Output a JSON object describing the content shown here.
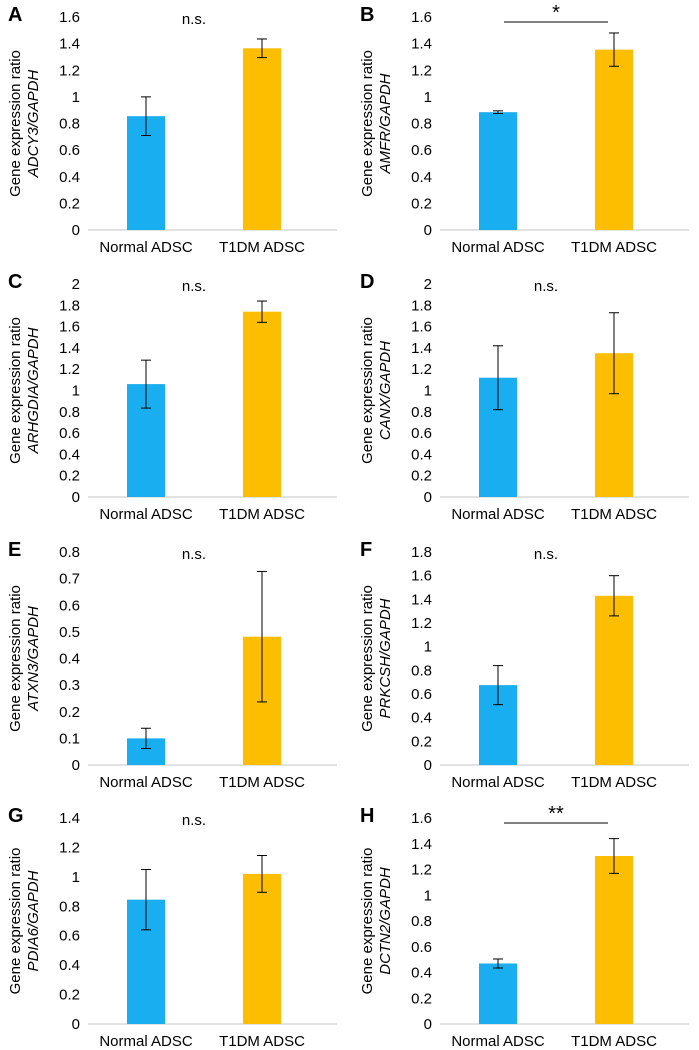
{
  "figure": {
    "colors": {
      "normal": "#19aef0",
      "t1dm": "#fdbe00",
      "axis": "#d9d9d9",
      "errorbar": "#000000"
    },
    "categories": [
      "Normal ADSC",
      "T1DM ADSC"
    ],
    "ylabel_prefix": "Gene expression ratio"
  },
  "chart_data": [
    {
      "panel": "A",
      "type": "bar",
      "gene_label": "ADCY3/GAPDH",
      "categories": [
        "Normal ADSC",
        "T1DM ADSC"
      ],
      "values": [
        0.855,
        1.365
      ],
      "errors": [
        0.145,
        0.07
      ],
      "ylim": [
        0,
        1.6
      ],
      "yticks": [
        "0",
        "0.2",
        "0.4",
        "0.6",
        "0.8",
        "1",
        "1.2",
        "1.4",
        "1.6"
      ],
      "significance": "n.s.",
      "bracket": false
    },
    {
      "panel": "B",
      "type": "bar",
      "gene_label": "AMFR/GAPDH",
      "categories": [
        "Normal ADSC",
        "T1DM ADSC"
      ],
      "values": [
        0.885,
        1.355
      ],
      "errors": [
        0.01,
        0.125
      ],
      "ylim": [
        0,
        1.6
      ],
      "yticks": [
        "0",
        "0.2",
        "0.4",
        "0.6",
        "0.8",
        "1",
        "1.2",
        "1.4",
        "1.6"
      ],
      "significance": "*",
      "bracket": true
    },
    {
      "panel": "C",
      "type": "bar",
      "gene_label": "ARHGDIA/GAPDH",
      "categories": [
        "Normal ADSC",
        "T1DM ADSC"
      ],
      "values": [
        1.06,
        1.74
      ],
      "errors": [
        0.225,
        0.1
      ],
      "ylim": [
        0,
        2
      ],
      "yticks": [
        "0",
        "0.2",
        "0.4",
        "0.6",
        "0.8",
        "1",
        "1.2",
        "1.4",
        "1.6",
        "1.8",
        "2"
      ],
      "significance": "n.s.",
      "bracket": false
    },
    {
      "panel": "D",
      "type": "bar",
      "gene_label": "CANX/GAPDH",
      "categories": [
        "Normal ADSC",
        "T1DM ADSC"
      ],
      "values": [
        1.12,
        1.35
      ],
      "errors": [
        0.3,
        0.38
      ],
      "ylim": [
        0,
        2
      ],
      "yticks": [
        "0",
        "0.2",
        "0.4",
        "0.6",
        "0.8",
        "1",
        "1.2",
        "1.4",
        "1.6",
        "1.8",
        "2"
      ],
      "significance": "n.s.",
      "bracket": false
    },
    {
      "panel": "E",
      "type": "bar",
      "gene_label": "ATXN3/GAPDH",
      "categories": [
        "Normal ADSC",
        "T1DM ADSC"
      ],
      "values": [
        0.1,
        0.482
      ],
      "errors": [
        0.038,
        0.245
      ],
      "ylim": [
        0,
        0.8
      ],
      "yticks": [
        "0",
        "0.1",
        "0.2",
        "0.3",
        "0.4",
        "0.5",
        "0.6",
        "0.7",
        "0.8"
      ],
      "significance": "n.s.",
      "bracket": false
    },
    {
      "panel": "F",
      "type": "bar",
      "gene_label": "PRKCSH/GAPDH",
      "categories": [
        "Normal ADSC",
        "T1DM ADSC"
      ],
      "values": [
        0.675,
        1.43
      ],
      "errors": [
        0.165,
        0.17
      ],
      "ylim": [
        0,
        1.8
      ],
      "yticks": [
        "0",
        "0.2",
        "0.4",
        "0.6",
        "0.8",
        "1",
        "1.2",
        "1.4",
        "1.6",
        "1.8"
      ],
      "significance": "n.s.",
      "bracket": false
    },
    {
      "panel": "G",
      "type": "bar",
      "gene_label": "PDIA6/GAPDH",
      "categories": [
        "Normal ADSC",
        "T1DM ADSC"
      ],
      "values": [
        0.845,
        1.02
      ],
      "errors": [
        0.205,
        0.125
      ],
      "ylim": [
        0,
        1.4
      ],
      "yticks": [
        "0",
        "0.2",
        "0.4",
        "0.6",
        "0.8",
        "1",
        "1.2",
        "1.4"
      ],
      "significance": "n.s.",
      "bracket": false
    },
    {
      "panel": "H",
      "type": "bar",
      "gene_label": "DCTN2/GAPDH",
      "categories": [
        "Normal ADSC",
        "T1DM ADSC"
      ],
      "values": [
        0.47,
        1.305
      ],
      "errors": [
        0.035,
        0.135
      ],
      "ylim": [
        0,
        1.6
      ],
      "yticks": [
        "0",
        "0.2",
        "0.4",
        "0.6",
        "0.8",
        "1",
        "1.2",
        "1.4",
        "1.6"
      ],
      "significance": "**",
      "bracket": true
    }
  ]
}
